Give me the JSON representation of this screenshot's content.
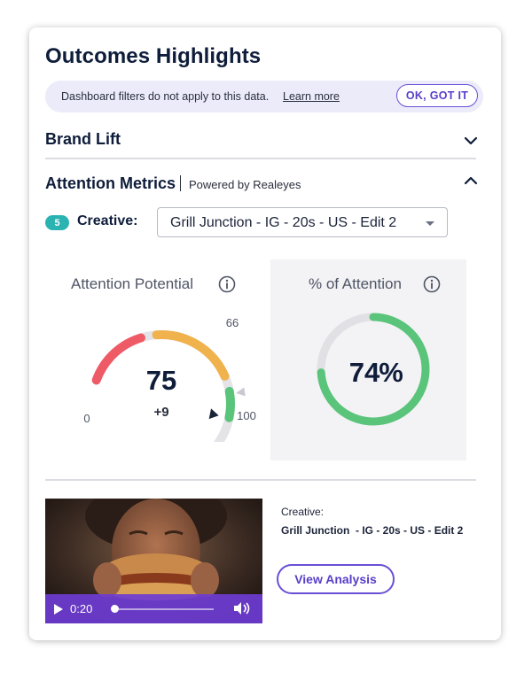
{
  "card": {
    "title": "Outcomes Highlights"
  },
  "banner": {
    "message": "Dashboard filters do not apply to this data.",
    "link_label": "Learn more",
    "button_label": "OK, GOT IT"
  },
  "sections": {
    "brand_lift": {
      "label": "Brand Lift",
      "icon": "chevron-down-icon"
    },
    "attention_metrics": {
      "label": "Attention Metrics",
      "icon": "chevron-up-icon",
      "powered_by": "Powered by Realeyes"
    }
  },
  "creative_selector": {
    "count_badge": "5",
    "label": "Creative:",
    "selected_value": "Grill Junction - IG - 20s - US - Edit 2"
  },
  "attention_potential": {
    "title": "Attention Potential",
    "value": "75",
    "delta": "+9",
    "min_label": "0",
    "max_label": "100",
    "benchmark_label": "66",
    "value_fraction": 0.75,
    "benchmark_fraction": 0.66,
    "zone_colors": {
      "low": "#ef5a67",
      "mid": "#f0b24c",
      "high": "#5ac47a",
      "track": "#e3e3e8"
    }
  },
  "percent_attention": {
    "title": "% of Attention",
    "value": "74",
    "unit": "%",
    "fraction": 0.74,
    "colors": {
      "fill": "#5ac47a",
      "track": "#e0e0e5"
    }
  },
  "media": {
    "time": "0:20",
    "progress_fraction": 0.0,
    "play_icon": "play-icon",
    "volume_icon": "volume-icon"
  },
  "creative_info": {
    "label": "Creative:",
    "name": "Grill Junction  - IG - 20s - US - Edit 2",
    "button_label": "View Analysis"
  },
  "colors": {
    "accent": "#5a3ec8",
    "badge": "#2bb3b1",
    "title": "#0f1d3a"
  }
}
